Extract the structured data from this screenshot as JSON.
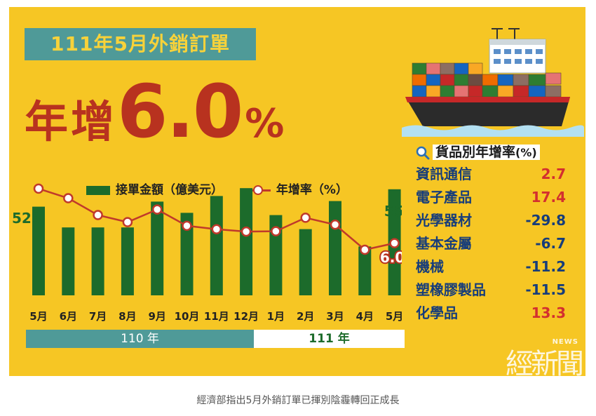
{
  "header": {
    "title": "111年5月外銷訂單",
    "headline_prefix": "年增",
    "headline_value": "6.0",
    "headline_unit": "%"
  },
  "chart_data": {
    "type": "bar",
    "categories": [
      "5月",
      "6月",
      "7月",
      "8月",
      "9月",
      "10月",
      "11月",
      "12月",
      "1月",
      "2月",
      "3月",
      "4月",
      "5月"
    ],
    "series": [
      {
        "name": "接單金額（億美元）",
        "type": "bar",
        "values": [
          523,
          486,
          486,
          486,
          532,
          512,
          542,
          556,
          508,
          483,
          533,
          452,
          554
        ]
      },
      {
        "name": "年增率（%）",
        "type": "line",
        "values": [
          38.4,
          32.7,
          22.7,
          18.5,
          26.0,
          16.3,
          14.3,
          12.9,
          13.1,
          21.1,
          17.0,
          2.1,
          6.0
        ]
      }
    ],
    "labels": {
      "first_bar": "523",
      "last_bar": "554",
      "last_rate": "6.0"
    },
    "legend": "top",
    "year_groups": [
      {
        "label": "110 年",
        "span": 8
      },
      {
        "label": "111 年",
        "span": 5
      }
    ],
    "colors": {
      "bar": "#1c6b2b",
      "line": "#c0392b"
    }
  },
  "panel": {
    "title": "貨品別年增率",
    "title_unit": "(%)",
    "rows": [
      {
        "name": "資訊通信",
        "value": "2.7"
      },
      {
        "name": "電子產品",
        "value": "17.4"
      },
      {
        "name": "光學器材",
        "value": "-29.8"
      },
      {
        "name": "基本金屬",
        "value": "-6.7"
      },
      {
        "name": "機械",
        "value": "-11.2"
      },
      {
        "name": "塑橡膠製品",
        "value": "-11.5"
      },
      {
        "name": "化學品",
        "value": "13.3"
      }
    ]
  },
  "logo": {
    "cjk": "經新聞",
    "en": "NEWS"
  },
  "caption": "經濟部指出5月外銷訂單已揮別陰霾轉回正成長",
  "colors": {
    "background": "#f6c624",
    "accent_red": "#b8321f",
    "teal": "#4f9a98",
    "bar_green": "#1c6b2b"
  }
}
